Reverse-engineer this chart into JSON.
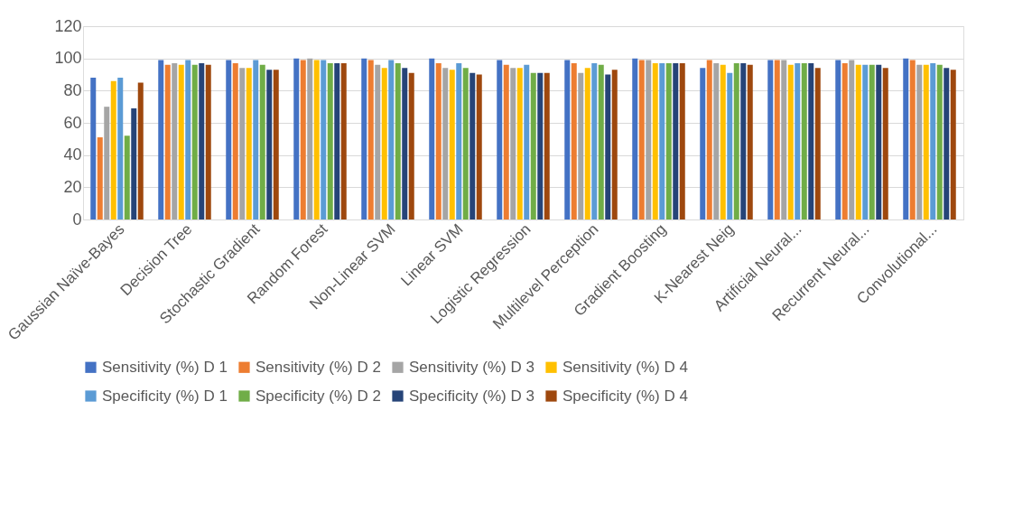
{
  "chart_data": {
    "type": "bar",
    "categories": [
      "Gaussian Naïve-Bayes",
      "Decision Tree",
      "Stochastic Gradient",
      "Random Forest",
      "Non-Linear SVM",
      "Linear SVM",
      "Logistic Regression",
      "Multilevel Perception",
      "Gradient Boosting",
      "K-Nearest Neig",
      "Artificial Neural...",
      "Recurrent Neural...",
      "Convolutional..."
    ],
    "series": [
      {
        "name": "Sensitivity (%) D 1",
        "color": "#4472c4",
        "values": [
          88,
          99,
          99,
          100,
          100,
          100,
          99,
          99,
          100,
          94,
          99,
          99,
          100
        ]
      },
      {
        "name": "Sensitivity (%) D 2",
        "color": "#ed7d31",
        "values": [
          51,
          96,
          97,
          99,
          99,
          97,
          96,
          97,
          99,
          99,
          99,
          97,
          99
        ]
      },
      {
        "name": "Sensitivity (%) D 3",
        "color": "#a5a5a5",
        "values": [
          70,
          97,
          94,
          100,
          96,
          94,
          94,
          91,
          99,
          97,
          99,
          99,
          96
        ]
      },
      {
        "name": "Sensitivity (%) D 4",
        "color": "#ffc000",
        "values": [
          86,
          96,
          94,
          99,
          94,
          93,
          94,
          94,
          97,
          96,
          96,
          96,
          96
        ]
      },
      {
        "name": "Specificity (%) D 1",
        "color": "#5b9bd5",
        "values": [
          88,
          99,
          99,
          99,
          99,
          97,
          96,
          97,
          97,
          91,
          97,
          96,
          97
        ]
      },
      {
        "name": "Specificity (%) D 2",
        "color": "#70ad47",
        "values": [
          52,
          96,
          96,
          97,
          97,
          94,
          91,
          96,
          97,
          97,
          97,
          96,
          96
        ]
      },
      {
        "name": "Specificity (%) D 3",
        "color": "#264478",
        "values": [
          69,
          97,
          93,
          97,
          94,
          91,
          91,
          90,
          97,
          97,
          97,
          96,
          94
        ]
      },
      {
        "name": "Specificity (%) D 4",
        "color": "#9e480e",
        "values": [
          85,
          96,
          93,
          97,
          91,
          90,
          91,
          93,
          97,
          96,
          94,
          94,
          93
        ]
      }
    ],
    "ylim": [
      0,
      120
    ],
    "yticks": [
      0,
      20,
      40,
      60,
      80,
      100,
      120
    ],
    "grid": "y",
    "legend": "bottom"
  }
}
